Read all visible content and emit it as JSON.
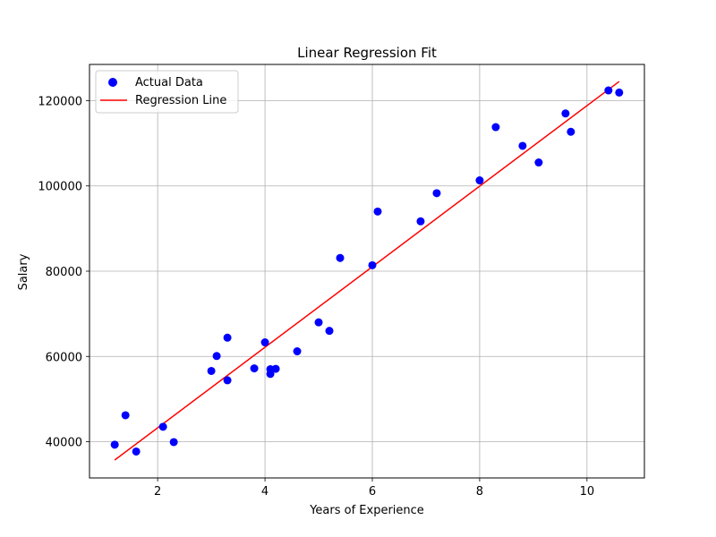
{
  "chart_data": {
    "type": "scatter",
    "title": "Linear Regression Fit",
    "xlabel": "Years of Experience",
    "ylabel": "Salary",
    "xlim": [
      0.73,
      11.07
    ],
    "ylim": [
      31500,
      128500
    ],
    "xticks": [
      2,
      4,
      6,
      8,
      10
    ],
    "yticks": [
      40000,
      60000,
      80000,
      100000,
      120000
    ],
    "grid": true,
    "legend_position": "top-left",
    "series": [
      {
        "name": "Actual Data",
        "kind": "scatter",
        "color": "#0000ff",
        "points": [
          [
            1.2,
            39300
          ],
          [
            1.4,
            46200
          ],
          [
            1.6,
            37700
          ],
          [
            2.1,
            43500
          ],
          [
            2.3,
            39900
          ],
          [
            3.0,
            56600
          ],
          [
            3.1,
            60100
          ],
          [
            3.3,
            54400
          ],
          [
            3.3,
            64400
          ],
          [
            3.8,
            57200
          ],
          [
            4.0,
            63300
          ],
          [
            4.1,
            55900
          ],
          [
            4.1,
            57000
          ],
          [
            4.2,
            57100
          ],
          [
            4.6,
            61200
          ],
          [
            5.0,
            68000
          ],
          [
            5.2,
            66000
          ],
          [
            5.4,
            83100
          ],
          [
            6.0,
            81400
          ],
          [
            6.1,
            94000
          ],
          [
            6.9,
            91700
          ],
          [
            7.2,
            98300
          ],
          [
            8.0,
            101300
          ],
          [
            8.3,
            113800
          ],
          [
            8.8,
            109400
          ],
          [
            9.1,
            105500
          ],
          [
            9.6,
            117000
          ],
          [
            9.7,
            112700
          ],
          [
            10.4,
            122400
          ],
          [
            10.6,
            121900
          ]
        ]
      },
      {
        "name": "Regression Line",
        "kind": "line",
        "color": "#ff0000",
        "points": [
          [
            1.2,
            35700
          ],
          [
            10.6,
            124500
          ]
        ]
      }
    ]
  }
}
